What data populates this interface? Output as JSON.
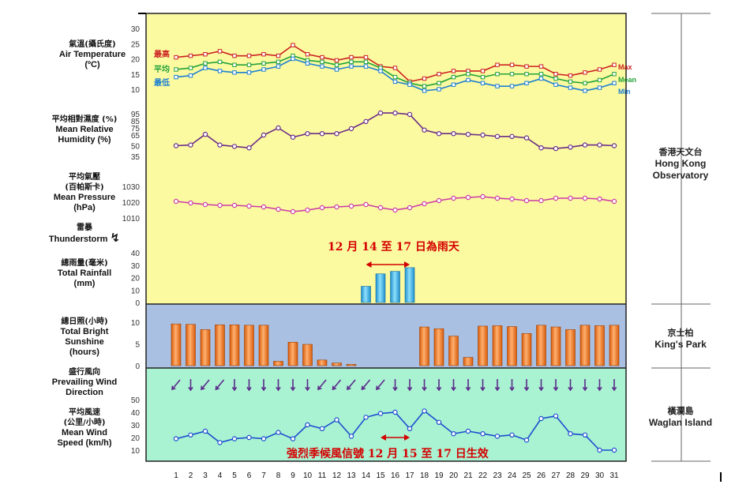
{
  "labels": {
    "temp_cn": "氣溫(攝氏度)",
    "temp_en": "Air Temperature",
    "temp_unit": "(ºC)",
    "rh_cn": "平均相對濕度 (%)",
    "rh_en1": "Mean Relative",
    "rh_en2": "Humidity (%)",
    "pres_cn1": "平均氣壓",
    "pres_cn2": "(百帕斯卡)",
    "pres_en1": "Mean Pressure",
    "pres_en2": "(hPa)",
    "thunder_cn": "雷暴",
    "thunder_en": "Thunderstorm",
    "rain_cn": "總雨量(毫米)",
    "rain_en1": "Total Rainfall",
    "rain_en2": "(mm)",
    "sun_cn": "總日照(小時)",
    "sun_en1": "Total Bright",
    "sun_en2": "Sunshine",
    "sun_en3": "(hours)",
    "wdir_cn": "盛行風向",
    "wdir_en1": "Prevailing Wind",
    "wdir_en2": "Direction",
    "wspd_cn": "平均風速",
    "wspd_cn2": "(公里/小時)",
    "wspd_en1": "Mean Wind",
    "wspd_en2": "Speed (km/h)"
  },
  "stations": {
    "hko_cn": "香港天文台",
    "hko_en1": "Hong Kong",
    "hko_en2": "Observatory",
    "kp_cn": "京士柏",
    "kp_en": "King's Park",
    "wi_cn": "橫瀾島",
    "wi_en": "Waglan Island"
  },
  "notes": {
    "rain_note": "12 月 14 至 17 日為雨天",
    "signal_note": "強烈季候風信號 12 月 15 至 17 日生效"
  },
  "colors": {
    "yellow_panel": "#fbfaa0",
    "blue_panel": "#a9c0e2",
    "green_panel": "#a9f2d2",
    "max": "#cc2222",
    "mean": "#23a23a",
    "min": "#1e7fd0",
    "rh": "#6b2d86",
    "pressure": "#cc3aa6",
    "rain_bar": "#29b6e8",
    "sun_bar": "#ef6d10",
    "wind_arrow": "#5b2a8a",
    "wind_speed": "#1a4fd0",
    "note": "#d40000"
  },
  "chart_data": {
    "type": "line",
    "x": [
      1,
      2,
      3,
      4,
      5,
      6,
      7,
      8,
      9,
      10,
      11,
      12,
      13,
      14,
      15,
      16,
      17,
      18,
      19,
      20,
      21,
      22,
      23,
      24,
      25,
      26,
      27,
      28,
      29,
      30,
      31
    ],
    "panels": [
      {
        "name": "temperature",
        "yticks": [
          10,
          15,
          20,
          25,
          30
        ],
        "ylim": [
          10,
          30
        ],
        "series_labels": {
          "max_cn": "最高",
          "mean_cn": "平均",
          "min_cn": "最低",
          "max_en": "Max",
          "mean_en": "Mean",
          "min_en": "Min"
        },
        "series": [
          {
            "name": "Max",
            "values": [
              20.5,
              21,
              21.5,
              22.5,
              21,
              21,
              21.5,
              21,
              24.5,
              21.5,
              20.5,
              19.5,
              20.5,
              20.5,
              17.5,
              17,
              12.5,
              13.5,
              15,
              16,
              16,
              16,
              18,
              18,
              17.5,
              17.5,
              15,
              14.5,
              15.5,
              16.5,
              18
            ]
          },
          {
            "name": "Mean",
            "values": [
              16.5,
              17,
              18.5,
              19,
              18,
              18,
              18.5,
              19,
              21,
              19.5,
              19,
              18,
              19,
              19,
              17,
              14,
              12,
              11,
              12,
              14,
              15,
              14,
              15,
              15,
              15,
              15,
              13.5,
              12.5,
              12,
              13,
              15
            ]
          },
          {
            "name": "Min",
            "values": [
              14,
              14.5,
              17,
              16,
              15.5,
              15.5,
              16.5,
              17.5,
              20,
              18.5,
              17.5,
              16.5,
              17.5,
              17.5,
              16,
              12.5,
              11.5,
              9.5,
              10,
              11.5,
              13,
              12,
              11,
              11,
              12,
              13.5,
              11.5,
              10.5,
              9.5,
              10.5,
              12
            ]
          }
        ]
      },
      {
        "name": "mean_relative_humidity",
        "yticks": [
          35,
          50,
          65,
          75,
          85,
          95
        ],
        "ylim": [
          35,
          95
        ],
        "series": [
          {
            "name": "RH",
            "values": [
              50,
              51,
              66,
              51,
              49,
              47,
              65,
              75,
              62,
              67,
              67,
              67,
              74,
              84,
              96,
              96,
              94,
              72,
              67,
              67,
              66,
              65,
              63,
              63,
              61,
              47,
              46,
              48,
              51,
              51,
              50
            ]
          }
        ]
      },
      {
        "name": "mean_pressure",
        "yticks": [
          1010,
          1020,
          1030
        ],
        "ylim": [
          1010,
          1030
        ],
        "series": [
          {
            "name": "Pressure",
            "values": [
              1020.5,
              1019.5,
              1018.5,
              1018,
              1018,
              1017.5,
              1017,
              1015.5,
              1014,
              1015,
              1016.5,
              1017,
              1017.5,
              1018.5,
              1016.5,
              1015,
              1016.5,
              1019,
              1021,
              1022.5,
              1023,
              1023.5,
              1022.5,
              1022,
              1021,
              1021,
              1022.5,
              1022.5,
              1022.5,
              1022,
              1020.5
            ]
          }
        ]
      },
      {
        "name": "total_rainfall",
        "type": "bar",
        "yticks": [
          0,
          10,
          20,
          30,
          40
        ],
        "ylim": [
          0,
          40
        ],
        "values": [
          0,
          0,
          0,
          0,
          0,
          0,
          0,
          0,
          0,
          0,
          0,
          0,
          0,
          13,
          23,
          25,
          28,
          0,
          0,
          0,
          0,
          0,
          0,
          0,
          0,
          0,
          0,
          0,
          0,
          0,
          0
        ]
      },
      {
        "name": "total_bright_sunshine",
        "type": "bar",
        "yticks": [
          0,
          5,
          10
        ],
        "ylim": [
          0,
          10
        ],
        "values": [
          9.6,
          9.5,
          8.3,
          9.4,
          9.4,
          9.3,
          9.3,
          1,
          5.4,
          4.9,
          1.3,
          0.6,
          0.3,
          0,
          0,
          0,
          0,
          8.9,
          8.5,
          6.8,
          1.9,
          9.1,
          9.2,
          9,
          7.4,
          9.3,
          8.9,
          8.3,
          9.3,
          9.2,
          9.3
        ]
      },
      {
        "name": "prevailing_wind_direction",
        "type": "arrows",
        "directions": [
          "NE",
          "N",
          "NE",
          "NE",
          "N",
          "N",
          "N",
          "N",
          "N",
          "N",
          "NE",
          "NE",
          "NE",
          "NE",
          "NE",
          "N",
          "N",
          "N",
          "N",
          "N",
          "N",
          "N",
          "N",
          "N",
          "N",
          "N",
          "N",
          "N",
          "N",
          "N",
          "N"
        ]
      },
      {
        "name": "mean_wind_speed",
        "yticks": [
          10,
          20,
          30,
          40,
          50
        ],
        "ylim": [
          10,
          50
        ],
        "series": [
          {
            "name": "Wind speed",
            "values": [
              19,
              22,
              25,
              16,
              19,
              20,
              19,
              24,
              19,
              30,
              27,
              34,
              21,
              36,
              39,
              40,
              27,
              41,
              32,
              23,
              25,
              23,
              21,
              22,
              18,
              35,
              37,
              23,
              22,
              10,
              10
            ]
          }
        ]
      }
    ],
    "x_ticklabels": [
      "1",
      "2",
      "3",
      "4",
      "5",
      "6",
      "7",
      "8",
      "9",
      "10",
      "11",
      "12",
      "13",
      "14",
      "15",
      "16",
      "17",
      "18",
      "19",
      "20",
      "21",
      "22",
      "23",
      "24",
      "25",
      "26",
      "27",
      "28",
      "29",
      "30",
      "31"
    ]
  }
}
